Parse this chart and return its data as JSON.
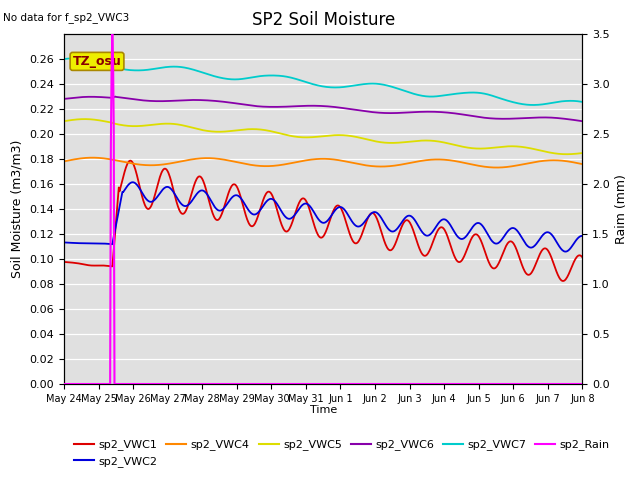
{
  "title": "SP2 Soil Moisture",
  "note": "No data for f_sp2_VWC3",
  "ylabel": "Soil Moisture (m3/m3)",
  "ylabel2": "Raim (mm)",
  "xlabel": "Time",
  "annotation": "TZ_osu",
  "ylim": [
    0.0,
    0.28
  ],
  "ylim2": [
    0.0,
    3.5
  ],
  "background_color": "#e0e0e0",
  "xtick_labels": [
    "May 24",
    "May 25",
    "May 26",
    "May 27",
    "May 28",
    "May 29",
    "May 30",
    "May 31",
    "Jun 1",
    "Jun 2",
    "Jun 3",
    "Jun 4",
    "Jun 5",
    "Jun 6",
    "Jun 7",
    "Jun 8"
  ],
  "yticks": [
    0.0,
    0.02,
    0.04,
    0.06,
    0.08,
    0.1,
    0.12,
    0.14,
    0.16,
    0.18,
    0.2,
    0.22,
    0.24,
    0.26
  ],
  "yticks2": [
    0.0,
    0.5,
    1.0,
    1.5,
    2.0,
    2.5,
    3.0,
    3.5
  ],
  "colors": {
    "sp2_VWC1": "#dd0000",
    "sp2_VWC2": "#0000dd",
    "sp2_VWC4": "#ff8800",
    "sp2_VWC5": "#dddd00",
    "sp2_VWC6": "#8800aa",
    "sp2_VWC7": "#00cccc",
    "sp2_Rain": "#ff00ff"
  }
}
